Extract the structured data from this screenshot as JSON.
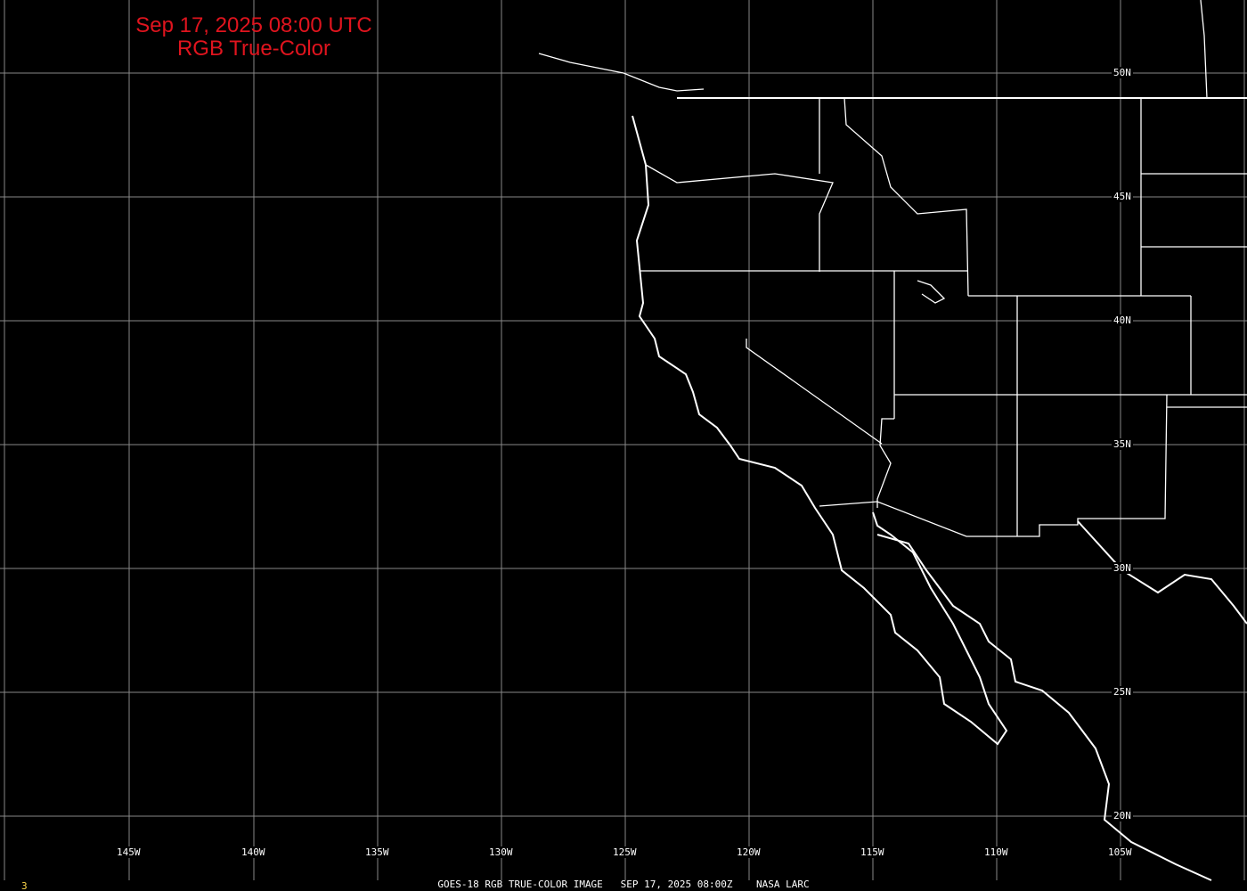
{
  "title": {
    "line1": "Sep 17, 2025 08:00 UTC",
    "line2": "RGB True-Color"
  },
  "footer": "GOES-18 RGB TRUE-COLOR IMAGE   SEP 17, 2025 08:00Z    NASA LARC",
  "frame_number": "3",
  "longitude_labels": [
    "145W",
    "140W",
    "135W",
    "130W",
    "125W",
    "120W",
    "115W",
    "110W",
    "105W"
  ],
  "latitude_labels": [
    "50N",
    "45N",
    "40N",
    "35N",
    "30N",
    "25N",
    "20N"
  ],
  "colors": {
    "title": "#e0141e",
    "grid": "#888888",
    "borders": "#ffffff",
    "background": "#000000",
    "frame_number": "#ffd84a"
  }
}
